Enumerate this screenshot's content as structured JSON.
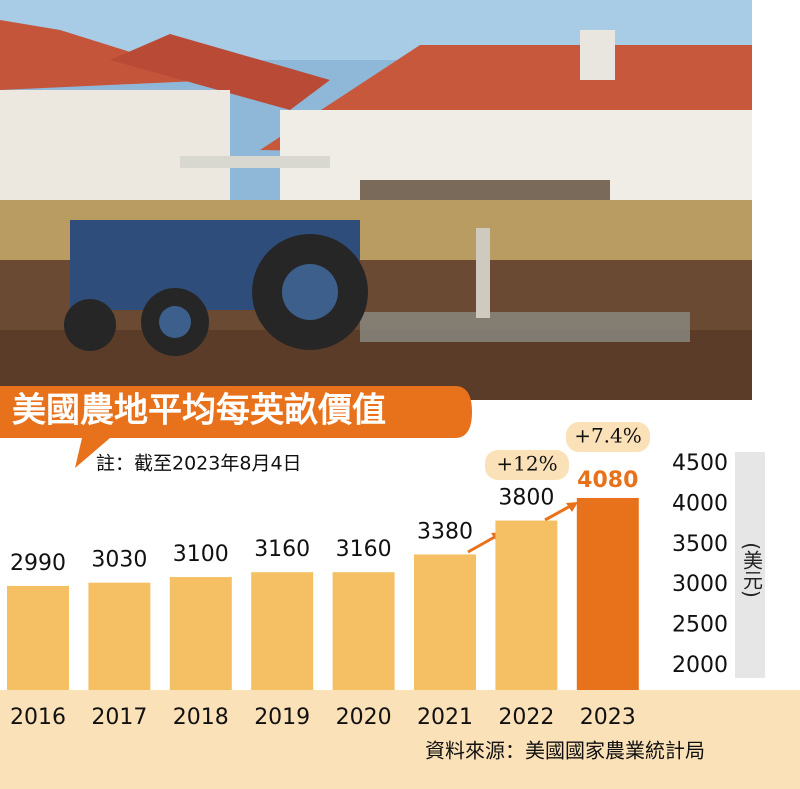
{
  "chart_data": {
    "type": "bar",
    "title": "美國農地平均每英畝價值",
    "note": "註：截至2023年8月4日",
    "source": "資料來源：美國國家農業統計局",
    "y_axis_label": "(美元)",
    "categories": [
      "2016",
      "2017",
      "2018",
      "2019",
      "2020",
      "2021",
      "2022",
      "2023"
    ],
    "values": [
      2990,
      3030,
      3100,
      3160,
      3160,
      3380,
      3800,
      4080
    ],
    "colors": [
      "#f4c063",
      "#f4c063",
      "#f4c063",
      "#f4c063",
      "#f4c063",
      "#f4c063",
      "#f4c063",
      "#e8721c"
    ],
    "annotations": [
      {
        "text": "+12%"
      },
      {
        "text": "+7.4%"
      }
    ],
    "ylim": [
      1700,
      4600
    ],
    "yticks": [
      2000,
      2500,
      3000,
      3500,
      4000,
      4500
    ]
  }
}
